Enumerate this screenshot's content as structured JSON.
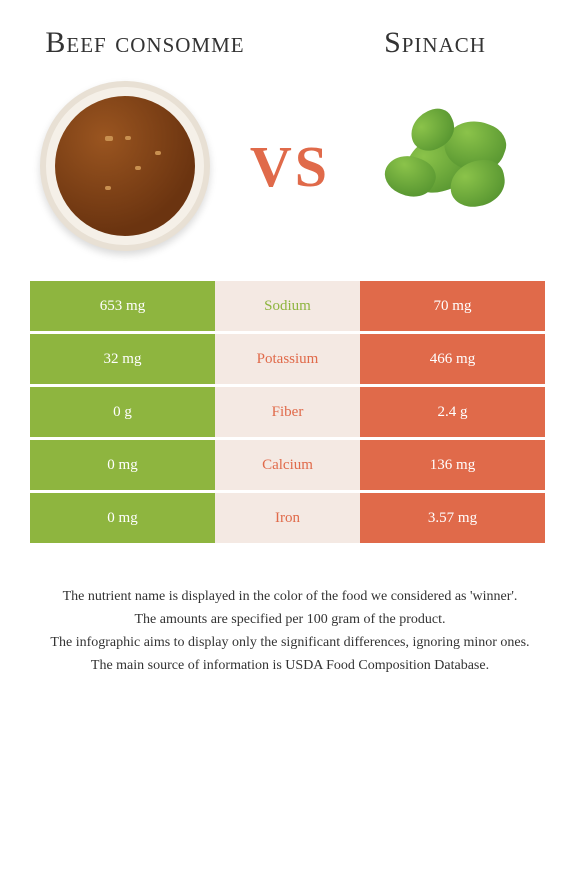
{
  "header": {
    "left_title": "Beef consomme",
    "right_title": "Spinach",
    "vs_text": "VS"
  },
  "colors": {
    "left": "#8eb53f",
    "right": "#e06a4a",
    "mid_bg": "#f4e9e3"
  },
  "rows": [
    {
      "left": "653 mg",
      "label": "Sodium",
      "right": "70 mg",
      "winner": "left"
    },
    {
      "left": "32 mg",
      "label": "Potassium",
      "right": "466 mg",
      "winner": "right"
    },
    {
      "left": "0 g",
      "label": "Fiber",
      "right": "2.4 g",
      "winner": "right"
    },
    {
      "left": "0 mg",
      "label": "Calcium",
      "right": "136 mg",
      "winner": "right"
    },
    {
      "left": "0 mg",
      "label": "Iron",
      "right": "3.57 mg",
      "winner": "right"
    }
  ],
  "footer": {
    "line1": "The nutrient name is displayed in the color of the food we considered as 'winner'.",
    "line2": "The amounts are specified per 100 gram of the product.",
    "line3": "The infographic aims to display only the significant differences, ignoring minor ones.",
    "line4": "The main source of information is USDA Food Composition Database."
  }
}
